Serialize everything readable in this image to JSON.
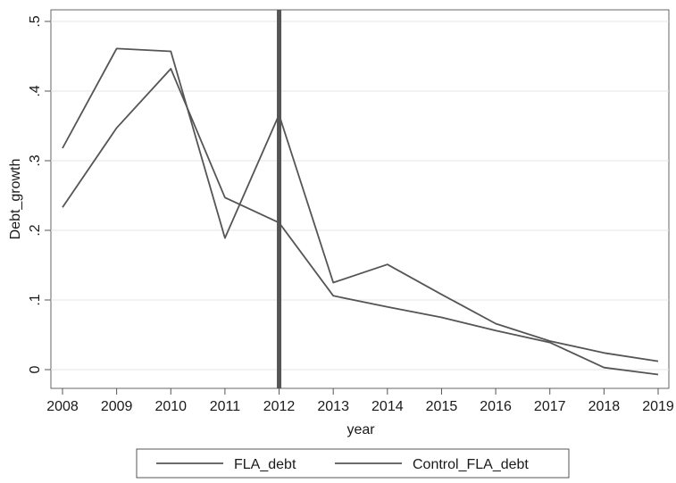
{
  "chart_data": {
    "type": "line",
    "title": "",
    "xlabel": "year",
    "ylabel": "Debt_growth",
    "x": [
      2008,
      2009,
      2010,
      2011,
      2012,
      2013,
      2014,
      2015,
      2016,
      2017,
      2018,
      2019
    ],
    "x_ticks": [
      "2008",
      "2009",
      "2010",
      "2011",
      "2012",
      "2013",
      "2014",
      "2015",
      "2016",
      "2017",
      "2018",
      "2019"
    ],
    "y_ticks": [
      {
        "value": 0,
        "label": "0"
      },
      {
        "value": 0.1,
        "label": ".1"
      },
      {
        "value": 0.2,
        "label": ".2"
      },
      {
        "value": 0.3,
        "label": ".3"
      },
      {
        "value": 0.4,
        "label": ".4"
      },
      {
        "value": 0.5,
        "label": ".5"
      }
    ],
    "xlim": [
      2008,
      2019
    ],
    "ylim": [
      -0.01,
      0.51
    ],
    "grid": true,
    "legend_position": "bottom",
    "vertical_reference_line": 2012,
    "series": [
      {
        "name": "FLA_debt",
        "values": [
          0.318,
          0.461,
          0.457,
          0.189,
          0.366,
          0.125,
          0.151,
          0.108,
          0.066,
          0.041,
          0.024,
          0.012
        ],
        "color": "#555555"
      },
      {
        "name": "Control_FLA_debt",
        "values": [
          0.233,
          0.347,
          0.432,
          0.247,
          0.211,
          0.106,
          0.09,
          0.075,
          0.056,
          0.039,
          0.003,
          -0.007
        ],
        "color": "#555555"
      }
    ]
  }
}
